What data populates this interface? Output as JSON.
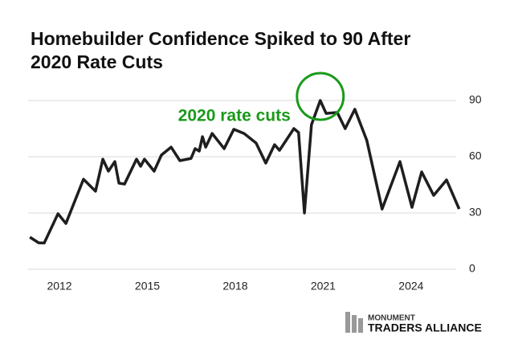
{
  "chart_data": {
    "type": "line",
    "title_lines": [
      "Homebuilder Confidence Spiked to 90 After",
      "2020 Rate Cuts"
    ],
    "annotation": "2020 rate cuts",
    "annotation_color": "#1a9a1a",
    "x": [
      2010.99,
      2011.29,
      2011.48,
      2011.95,
      2012.22,
      2012.82,
      2013.23,
      2013.48,
      2013.67,
      2013.89,
      2014.03,
      2014.22,
      2014.63,
      2014.77,
      2014.9,
      2015.23,
      2015.48,
      2015.81,
      2016.11,
      2016.49,
      2016.63,
      2016.77,
      2016.88,
      2016.99,
      2017.21,
      2017.62,
      2017.95,
      2018.3,
      2018.71,
      2019.04,
      2019.34,
      2019.51,
      2020.0,
      2020.16,
      2020.36,
      2020.6,
      2020.9,
      2021.1,
      2021.48,
      2021.75,
      2022.08,
      2022.49,
      2023.01,
      2023.62,
      2024.03,
      2024.36,
      2024.77,
      2025.21,
      2025.64
    ],
    "series": [
      {
        "color": "#1e1e1e",
        "values": [
          17.1,
          14.1,
          14,
          29.6,
          24.4,
          48,
          41.6,
          58.7,
          52.3,
          57.4,
          45.9,
          45.4,
          58.7,
          54.9,
          58.7,
          52.3,
          60.9,
          65.1,
          57.9,
          59.1,
          64.3,
          63,
          70.7,
          65.1,
          72.4,
          64.3,
          74.6,
          72.4,
          67.3,
          56.6,
          66.4,
          63.4,
          75,
          72.9,
          30,
          77.1,
          90,
          83.1,
          83.6,
          75,
          85.3,
          68.6,
          32.1,
          57.4,
          33,
          51.9,
          39.4,
          47.6,
          32.1
        ]
      }
    ],
    "xlim": [
      2010.93,
      2025.73
    ],
    "xticks": [
      2012,
      2015,
      2018,
      2021,
      2024
    ],
    "ylim": [
      0,
      90
    ],
    "yticks": [
      0,
      30,
      60,
      90
    ],
    "grid": true
  },
  "branding": {
    "line1": "MONUMENT",
    "line2": "TRADERS ALLIANCE"
  }
}
